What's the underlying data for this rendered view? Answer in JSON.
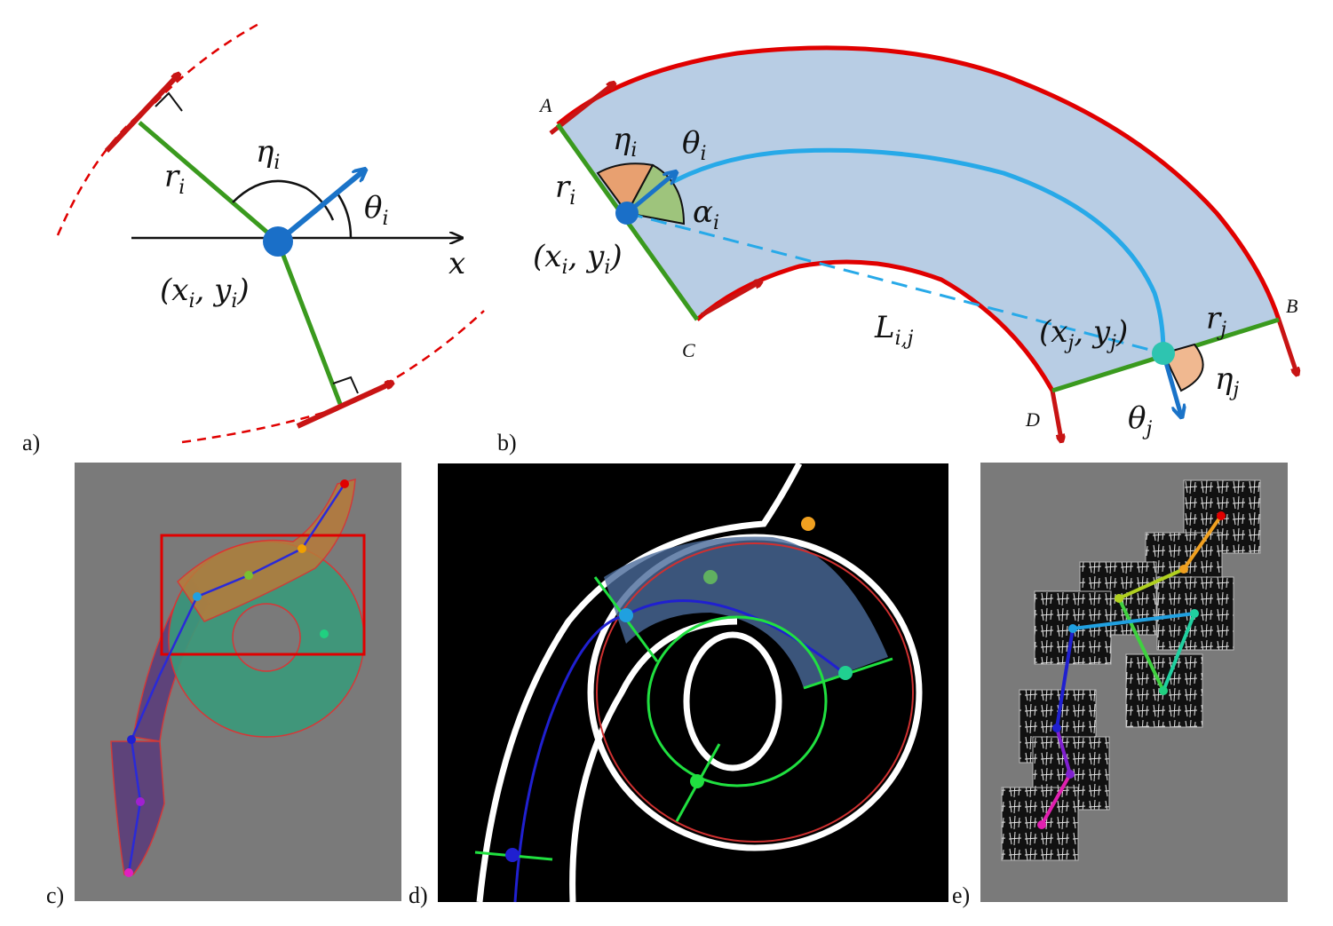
{
  "panel_labels": [
    "a)",
    "b)",
    "c)",
    "d)",
    "e)"
  ],
  "panel_a": {
    "r": "r",
    "r_sub": "i",
    "eta": "η",
    "eta_sub": "i",
    "theta": "θ",
    "theta_sub": "i",
    "pos_open": "(x",
    "pos_sub1": "i",
    "pos_mid": ", y",
    "pos_sub2": "i",
    "pos_close": ")",
    "x_axis": "x"
  },
  "panel_b": {
    "A": "A",
    "B": "B",
    "C": "C",
    "D": "D",
    "r_i": "r",
    "r_i_sub": "i",
    "eta_i": "η",
    "eta_i_sub": "i",
    "theta_i": "θ",
    "theta_i_sub": "i",
    "alpha_i": "α",
    "alpha_i_sub": "i",
    "pos_i_open": "(x",
    "pos_i_sub1": "i",
    "pos_i_mid": ", y",
    "pos_i_sub2": "i",
    "pos_i_close": ")",
    "L": "L",
    "L_sub": "i,j",
    "pos_j_open": "(x",
    "pos_j_sub1": "j",
    "pos_j_mid": ", y",
    "pos_j_sub2": "j",
    "pos_j_close": ")",
    "r_j": "r",
    "r_j_sub": "j",
    "eta_j": "η",
    "eta_j_sub": "j",
    "theta_j": "θ",
    "theta_j_sub": "j"
  },
  "colors": {
    "green_radius": "#3a9a1e",
    "red_boundary": "#e00000",
    "blue_arrow": "#1a73c8",
    "light_blue_fill": "#b8cde4",
    "skeleton_cyan": "#27a9e8",
    "eta_orange": "#e8a070",
    "alpha_green": "#9ec47c"
  }
}
